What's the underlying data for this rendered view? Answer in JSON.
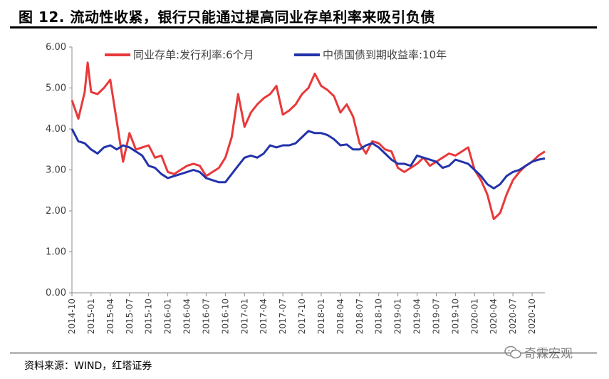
{
  "figure": {
    "title": "图 12. 流动性收紧，银行只能通过提高同业存单利率来吸引负债",
    "source": "资料来源：WIND，红塔证券",
    "watermark": "奇霖宏观"
  },
  "chart_data": {
    "type": "line",
    "ylim": [
      0,
      6
    ],
    "yticks": [
      "0.00",
      "1.00",
      "2.00",
      "3.00",
      "4.00",
      "5.00",
      "6.00"
    ],
    "xlim": [
      "2014-10",
      "2020-12"
    ],
    "xticks": [
      "2014-10",
      "2015-01",
      "2015-04",
      "2015-07",
      "2015-10",
      "2016-01",
      "2016-04",
      "2016-07",
      "2016-10",
      "2017-01",
      "2017-04",
      "2017-07",
      "2017-10",
      "2018-01",
      "2018-04",
      "2018-07",
      "2018-10",
      "2019-01",
      "2019-04",
      "2019-07",
      "2019-10",
      "2020-01",
      "2020-04",
      "2020-07",
      "2020-10"
    ],
    "legend_position": "top",
    "series": [
      {
        "name": "同业存单:发行利率:6个月",
        "color": "#e8393a",
        "points": [
          [
            "2014-10",
            4.7
          ],
          [
            "2014-11",
            4.25
          ],
          [
            "2014-12",
            4.9
          ],
          [
            "2014-12-15",
            5.62
          ],
          [
            "2015-01",
            4.9
          ],
          [
            "2015-02",
            4.85
          ],
          [
            "2015-03",
            5.0
          ],
          [
            "2015-04",
            5.2
          ],
          [
            "2015-05",
            4.2
          ],
          [
            "2015-06",
            3.2
          ],
          [
            "2015-07",
            3.9
          ],
          [
            "2015-08",
            3.5
          ],
          [
            "2015-09",
            3.55
          ],
          [
            "2015-10",
            3.6
          ],
          [
            "2015-11",
            3.3
          ],
          [
            "2015-12",
            3.35
          ],
          [
            "2016-01",
            2.95
          ],
          [
            "2016-02",
            2.9
          ],
          [
            "2016-03",
            3.0
          ],
          [
            "2016-04",
            3.1
          ],
          [
            "2016-05",
            3.15
          ],
          [
            "2016-06",
            3.1
          ],
          [
            "2016-07",
            2.85
          ],
          [
            "2016-08",
            2.95
          ],
          [
            "2016-09",
            3.05
          ],
          [
            "2016-10",
            3.3
          ],
          [
            "2016-11",
            3.8
          ],
          [
            "2016-12",
            4.85
          ],
          [
            "2017-01",
            4.05
          ],
          [
            "2017-02",
            4.4
          ],
          [
            "2017-03",
            4.6
          ],
          [
            "2017-04",
            4.75
          ],
          [
            "2017-05",
            4.85
          ],
          [
            "2017-06",
            5.05
          ],
          [
            "2017-07",
            4.35
          ],
          [
            "2017-08",
            4.45
          ],
          [
            "2017-09",
            4.6
          ],
          [
            "2017-10",
            4.85
          ],
          [
            "2017-11",
            5.0
          ],
          [
            "2017-12",
            5.35
          ],
          [
            "2018-01",
            5.05
          ],
          [
            "2018-02",
            4.95
          ],
          [
            "2018-03",
            4.8
          ],
          [
            "2018-04",
            4.4
          ],
          [
            "2018-05",
            4.6
          ],
          [
            "2018-06",
            4.3
          ],
          [
            "2018-07",
            3.65
          ],
          [
            "2018-08",
            3.4
          ],
          [
            "2018-09",
            3.7
          ],
          [
            "2018-10",
            3.65
          ],
          [
            "2018-11",
            3.5
          ],
          [
            "2018-12",
            3.45
          ],
          [
            "2019-01",
            3.05
          ],
          [
            "2019-02",
            2.95
          ],
          [
            "2019-03",
            3.05
          ],
          [
            "2019-04",
            3.15
          ],
          [
            "2019-05",
            3.3
          ],
          [
            "2019-06",
            3.1
          ],
          [
            "2019-07",
            3.2
          ],
          [
            "2019-08",
            3.3
          ],
          [
            "2019-09",
            3.4
          ],
          [
            "2019-10",
            3.35
          ],
          [
            "2019-11",
            3.45
          ],
          [
            "2019-12",
            3.55
          ],
          [
            "2020-01",
            3.0
          ],
          [
            "2020-02",
            2.75
          ],
          [
            "2020-03",
            2.4
          ],
          [
            "2020-04",
            1.8
          ],
          [
            "2020-05",
            1.95
          ],
          [
            "2020-06",
            2.4
          ],
          [
            "2020-07",
            2.75
          ],
          [
            "2020-08",
            2.95
          ],
          [
            "2020-09",
            3.1
          ],
          [
            "2020-10",
            3.2
          ],
          [
            "2020-11",
            3.35
          ],
          [
            "2020-12",
            3.45
          ]
        ]
      },
      {
        "name": "中债国债到期收益率:10年",
        "color": "#2233aa",
        "points": [
          [
            "2014-10",
            4.0
          ],
          [
            "2014-11",
            3.7
          ],
          [
            "2014-12",
            3.65
          ],
          [
            "2015-01",
            3.5
          ],
          [
            "2015-02",
            3.4
          ],
          [
            "2015-03",
            3.55
          ],
          [
            "2015-04",
            3.6
          ],
          [
            "2015-05",
            3.5
          ],
          [
            "2015-06",
            3.6
          ],
          [
            "2015-07",
            3.55
          ],
          [
            "2015-08",
            3.45
          ],
          [
            "2015-09",
            3.35
          ],
          [
            "2015-10",
            3.1
          ],
          [
            "2015-11",
            3.05
          ],
          [
            "2015-12",
            2.9
          ],
          [
            "2016-01",
            2.8
          ],
          [
            "2016-02",
            2.85
          ],
          [
            "2016-03",
            2.9
          ],
          [
            "2016-04",
            2.95
          ],
          [
            "2016-05",
            3.0
          ],
          [
            "2016-06",
            2.95
          ],
          [
            "2016-07",
            2.8
          ],
          [
            "2016-08",
            2.75
          ],
          [
            "2016-09",
            2.7
          ],
          [
            "2016-10",
            2.7
          ],
          [
            "2016-11",
            2.9
          ],
          [
            "2016-12",
            3.1
          ],
          [
            "2017-01",
            3.3
          ],
          [
            "2017-02",
            3.35
          ],
          [
            "2017-03",
            3.3
          ],
          [
            "2017-04",
            3.4
          ],
          [
            "2017-05",
            3.6
          ],
          [
            "2017-06",
            3.55
          ],
          [
            "2017-07",
            3.6
          ],
          [
            "2017-08",
            3.6
          ],
          [
            "2017-09",
            3.65
          ],
          [
            "2017-10",
            3.8
          ],
          [
            "2017-11",
            3.95
          ],
          [
            "2017-12",
            3.9
          ],
          [
            "2018-01",
            3.9
          ],
          [
            "2018-02",
            3.85
          ],
          [
            "2018-03",
            3.75
          ],
          [
            "2018-04",
            3.6
          ],
          [
            "2018-05",
            3.62
          ],
          [
            "2018-06",
            3.5
          ],
          [
            "2018-07",
            3.5
          ],
          [
            "2018-08",
            3.6
          ],
          [
            "2018-09",
            3.65
          ],
          [
            "2018-10",
            3.55
          ],
          [
            "2018-11",
            3.4
          ],
          [
            "2018-12",
            3.25
          ],
          [
            "2019-01",
            3.15
          ],
          [
            "2019-02",
            3.15
          ],
          [
            "2019-03",
            3.1
          ],
          [
            "2019-04",
            3.35
          ],
          [
            "2019-05",
            3.3
          ],
          [
            "2019-06",
            3.25
          ],
          [
            "2019-07",
            3.2
          ],
          [
            "2019-08",
            3.05
          ],
          [
            "2019-09",
            3.1
          ],
          [
            "2019-10",
            3.25
          ],
          [
            "2019-11",
            3.2
          ],
          [
            "2019-12",
            3.15
          ],
          [
            "2020-01",
            3.0
          ],
          [
            "2020-02",
            2.85
          ],
          [
            "2020-03",
            2.65
          ],
          [
            "2020-04",
            2.55
          ],
          [
            "2020-05",
            2.65
          ],
          [
            "2020-06",
            2.85
          ],
          [
            "2020-07",
            2.95
          ],
          [
            "2020-08",
            3.0
          ],
          [
            "2020-09",
            3.1
          ],
          [
            "2020-10",
            3.2
          ],
          [
            "2020-11",
            3.25
          ],
          [
            "2020-12",
            3.28
          ]
        ]
      }
    ]
  }
}
